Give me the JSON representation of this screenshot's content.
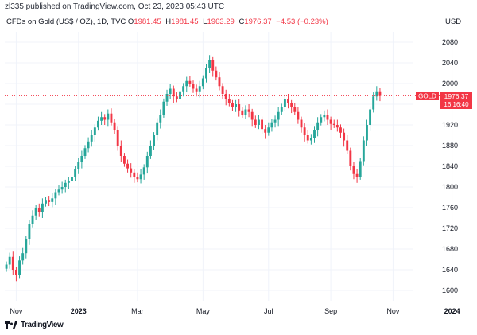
{
  "header": {
    "published": "zl335 published on TradingView.com, Oct 23, 2023 05:43 UTC",
    "symbol": "CFDs on Gold (US$ / OZ), 1D, TVC",
    "ohlc": {
      "o_label": "O",
      "o": "1981.45",
      "h_label": "H",
      "h": "1981.45",
      "l_label": "L",
      "l": "1963.29",
      "c_label": "C",
      "c": "1976.37",
      "change": "−4.53 (−0.23%)"
    },
    "currency": "USD"
  },
  "price_tag": {
    "label": "GOLD",
    "price": "1976.37",
    "countdown": "16:16:40"
  },
  "colors": {
    "up": "#26a69a",
    "down": "#f23645",
    "last_line": "#f23645",
    "grid": "#f0f3fa",
    "axis_text": "#131722"
  },
  "footer": {
    "logo_icon": "tradingview-logo-icon",
    "brand": "TradingView"
  },
  "chart_data": {
    "type": "candlestick",
    "ylim": [
      1580,
      2100
    ],
    "y_ticks": [
      1600,
      1640,
      1680,
      1720,
      1760,
      1800,
      1840,
      1880,
      1920,
      1960,
      2000,
      2040,
      2080
    ],
    "x_ticks": [
      "Nov",
      "2023",
      "Mar",
      "May",
      "Jul",
      "Sep",
      "Nov",
      "2024"
    ],
    "last_price": 1976.37,
    "series_close": [
      1650,
      1665,
      1640,
      1630,
      1658,
      1672,
      1700,
      1728,
      1745,
      1760,
      1752,
      1768,
      1775,
      1771,
      1778,
      1790,
      1795,
      1800,
      1808,
      1812,
      1820,
      1835,
      1848,
      1860,
      1875,
      1888,
      1900,
      1915,
      1928,
      1935,
      1930,
      1942,
      1925,
      1910,
      1880,
      1860,
      1845,
      1836,
      1828,
      1820,
      1815,
      1824,
      1838,
      1860,
      1880,
      1900,
      1925,
      1940,
      1965,
      1980,
      1990,
      1975,
      1970,
      1985,
      1995,
      2005,
      2000,
      1990,
      1985,
      1995,
      2010,
      2030,
      2045,
      2025,
      2012,
      1995,
      1980,
      1970,
      1962,
      1955,
      1960,
      1948,
      1940,
      1950,
      1945,
      1930,
      1920,
      1930,
      1912,
      1905,
      1915,
      1925,
      1930,
      1945,
      1955,
      1970,
      1962,
      1955,
      1945,
      1930,
      1915,
      1900,
      1890,
      1895,
      1910,
      1925,
      1935,
      1940,
      1930,
      1922,
      1920,
      1915,
      1905,
      1890,
      1870,
      1840,
      1825,
      1820,
      1850,
      1890,
      1920,
      1950,
      1975,
      1985,
      1976
    ]
  }
}
